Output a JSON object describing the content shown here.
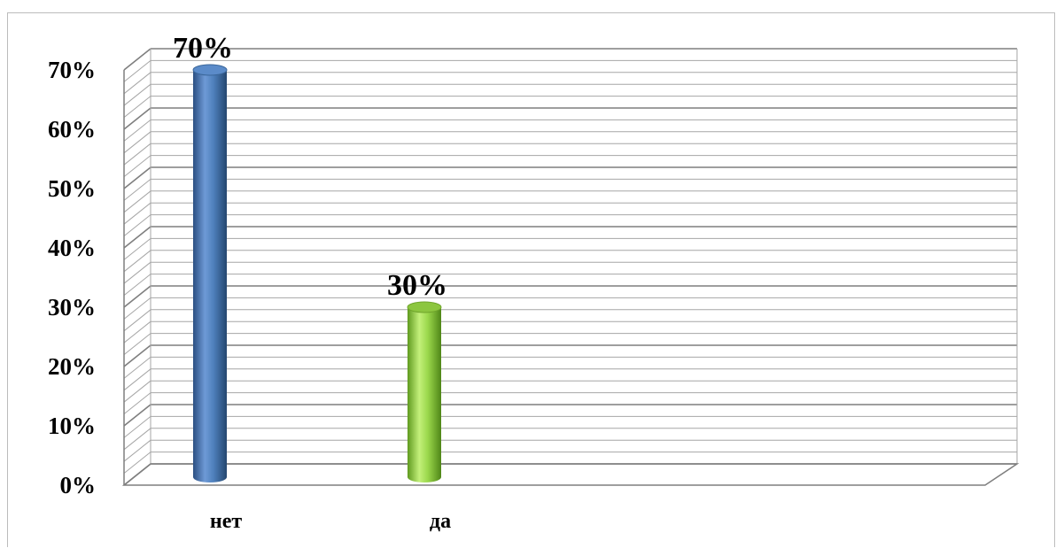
{
  "chart_data": {
    "type": "bar",
    "style": "3d-cylinder",
    "categories": [
      "нет",
      "да"
    ],
    "values": [
      70,
      30
    ],
    "value_labels": [
      "70%",
      "30%"
    ],
    "bar_colors": [
      "#4f81bd",
      "#9bd84c"
    ],
    "y_ticks": [
      "0%",
      "10%",
      "20%",
      "30%",
      "40%",
      "50%",
      "60%",
      "70%"
    ],
    "ylim": [
      0,
      70
    ],
    "grid": true,
    "legend": "none",
    "title": "",
    "xlabel": "",
    "ylabel": ""
  }
}
